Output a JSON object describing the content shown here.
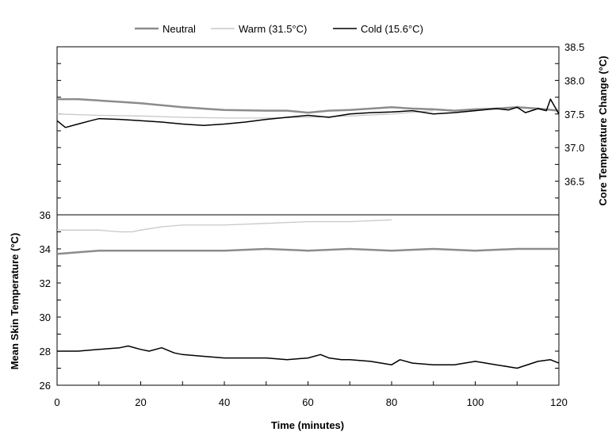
{
  "chart_data": {
    "type": "line",
    "legend": {
      "placement": "top",
      "entries": [
        {
          "label": "Neutral",
          "color": "#8c8c8c"
        },
        {
          "label": "Warm (31.5°C)",
          "color": "#c8c8c8"
        },
        {
          "label": "Cold (15.6°C)",
          "color": "#000000"
        }
      ]
    },
    "x_axis": {
      "label": "Time (minutes)",
      "range": [
        0,
        120
      ],
      "ticks": [
        "0",
        "20",
        "40",
        "60",
        "80",
        "100",
        "120"
      ]
    },
    "top_panel": {
      "y_label": "Core Temperature Change (°C)",
      "y_range": [
        36.0,
        38.5
      ],
      "ticks": [
        "36.5",
        "37.0",
        "37.5",
        "38.0",
        "38.5"
      ],
      "series": [
        {
          "name": "Neutral",
          "color": "#8c8c8c",
          "width": 2.5,
          "x": [
            0,
            5,
            10,
            15,
            20,
            25,
            30,
            40,
            50,
            55,
            60,
            65,
            70,
            75,
            80,
            85,
            90,
            95,
            100,
            105,
            110,
            115,
            120
          ],
          "y": [
            37.72,
            37.72,
            37.7,
            37.68,
            37.66,
            37.63,
            37.6,
            37.56,
            37.55,
            37.55,
            37.52,
            37.55,
            37.56,
            37.58,
            37.6,
            37.58,
            37.57,
            37.55,
            37.57,
            37.58,
            37.6,
            37.58,
            37.55
          ]
        },
        {
          "name": "Warm (31.5°C)",
          "color": "#c8c8c8",
          "width": 1.3,
          "x": [
            0,
            10,
            20,
            30,
            40,
            50,
            60,
            70,
            80,
            90
          ],
          "y": [
            37.5,
            37.48,
            37.47,
            37.45,
            37.44,
            37.44,
            37.45,
            37.47,
            37.5,
            37.55
          ]
        },
        {
          "name": "Cold (15.6°C)",
          "color": "#000000",
          "width": 1.5,
          "x": [
            0,
            2,
            5,
            8,
            10,
            15,
            20,
            25,
            30,
            35,
            40,
            45,
            50,
            55,
            60,
            65,
            70,
            75,
            80,
            85,
            90,
            95,
            100,
            105,
            108,
            110,
            112,
            115,
            117,
            118,
            120
          ],
          "y": [
            37.4,
            37.3,
            37.35,
            37.4,
            37.43,
            37.42,
            37.4,
            37.38,
            37.35,
            37.33,
            37.35,
            37.38,
            37.42,
            37.45,
            37.48,
            37.45,
            37.5,
            37.52,
            37.53,
            37.55,
            37.5,
            37.52,
            37.55,
            37.58,
            37.56,
            37.6,
            37.52,
            37.58,
            37.55,
            37.72,
            37.5
          ]
        }
      ]
    },
    "bottom_panel": {
      "y_label": "Mean Skin Temperature (°C)",
      "y_range": [
        26,
        36
      ],
      "ticks": [
        "26",
        "28",
        "30",
        "32",
        "34",
        "36"
      ],
      "series": [
        {
          "name": "Neutral",
          "color": "#8c8c8c",
          "width": 2.5,
          "x": [
            0,
            5,
            10,
            20,
            30,
            40,
            50,
            60,
            70,
            80,
            90,
            100,
            110,
            120
          ],
          "y": [
            33.7,
            33.8,
            33.9,
            33.9,
            33.9,
            33.9,
            34.0,
            33.9,
            34.0,
            33.9,
            34.0,
            33.9,
            34.0,
            34.0
          ]
        },
        {
          "name": "Warm (31.5°C)",
          "color": "#c8c8c8",
          "width": 1.3,
          "x": [
            0,
            5,
            10,
            15,
            18,
            20,
            25,
            30,
            40,
            50,
            60,
            70,
            80
          ],
          "y": [
            35.1,
            35.1,
            35.1,
            35.0,
            35.0,
            35.1,
            35.3,
            35.4,
            35.4,
            35.5,
            35.6,
            35.6,
            35.7
          ]
        },
        {
          "name": "Cold (15.6°C)",
          "color": "#000000",
          "width": 1.5,
          "x": [
            0,
            5,
            10,
            15,
            17,
            20,
            22,
            25,
            28,
            30,
            35,
            40,
            45,
            50,
            55,
            60,
            63,
            65,
            68,
            70,
            75,
            80,
            82,
            85,
            90,
            95,
            100,
            105,
            110,
            115,
            118,
            120
          ],
          "y": [
            28.0,
            28.0,
            28.1,
            28.2,
            28.3,
            28.1,
            28.0,
            28.2,
            27.9,
            27.8,
            27.7,
            27.6,
            27.6,
            27.6,
            27.5,
            27.6,
            27.8,
            27.6,
            27.5,
            27.5,
            27.4,
            27.2,
            27.5,
            27.3,
            27.2,
            27.2,
            27.4,
            27.2,
            27.0,
            27.4,
            27.5,
            27.3
          ]
        }
      ]
    }
  }
}
